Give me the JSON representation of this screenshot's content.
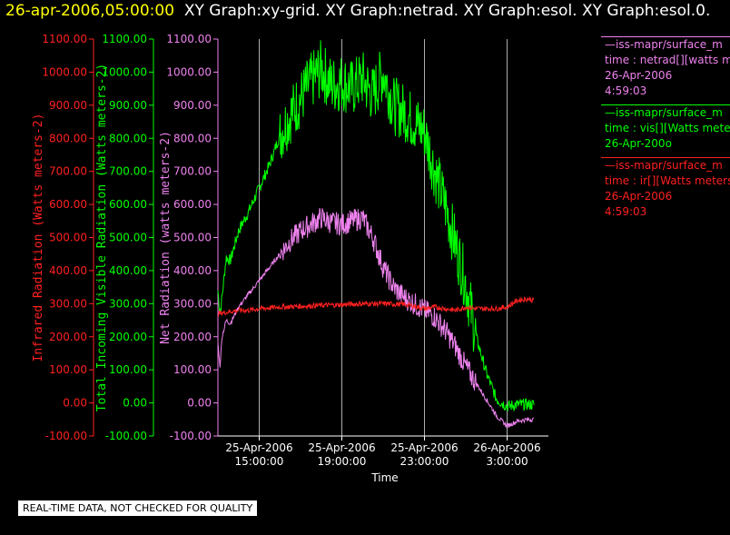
{
  "title": {
    "date": "26-apr-2006,05:00:00",
    "graphs": "XY Graph:xy-grid.  XY Graph:netrad.  XY Graph:esol.  XY Graph:esol.0."
  },
  "colors": {
    "ir": "#ff2020",
    "vis": "#00ff00",
    "net": "#ee82ee",
    "grid": "#ffffff"
  },
  "legend": [
    {
      "lines": [
        "—iss-mapr/surface_m",
        "time : netrad[][watts m",
        "26-Apr-2006",
        "4:59:03"
      ],
      "color": "#ee82ee"
    },
    {
      "lines": [
        "—iss-mapr/surface_m",
        "time : vis[][Watts mete",
        "26-Apr-200o"
      ],
      "color": "#00ff00"
    },
    {
      "lines": [
        "—iss-mapr/surface_m",
        "time : ir[][Watts meters",
        "26-Apr-2006",
        "4:59:03"
      ],
      "color": "#ff2020"
    }
  ],
  "quality_note": "REAL-TIME DATA, NOT CHECKED FOR QUALITY",
  "chart_data": {
    "type": "line",
    "xlabel": "Time",
    "x_ticks": [
      {
        "hours": 2,
        "label": [
          "25-Apr-2006",
          "15:00:00"
        ]
      },
      {
        "hours": 6,
        "label": [
          "25-Apr-2006",
          "19:00:00"
        ]
      },
      {
        "hours": 10,
        "label": [
          "25-Apr-2006",
          "23:00:00"
        ]
      },
      {
        "hours": 14,
        "label": [
          "26-Apr-2006",
          "3:00:00"
        ]
      }
    ],
    "x_range_hours": [
      0,
      16
    ],
    "x_start": "25-Apr-2006 13:00",
    "y_axes": [
      {
        "id": "ir",
        "label": "Infrared Radiation (Watts meters-2)",
        "color": "#ff2020",
        "range": [
          -100,
          1100
        ],
        "ticks": [
          "1100.00",
          "1000.00",
          "900.00",
          "800.00",
          "700.00",
          "600.00",
          "500.00",
          "400.00",
          "300.00",
          "200.00",
          "100.00",
          "0.00",
          "-100.00"
        ]
      },
      {
        "id": "vis",
        "label": "Total Incoming Visible Radiation (Watts meters-2)",
        "color": "#00ff00",
        "range": [
          -100,
          1100
        ],
        "ticks": [
          "1100.00",
          "1000.00",
          "900.00",
          "800.00",
          "700.00",
          "600.00",
          "500.00",
          "400.00",
          "300.00",
          "200.00",
          "100.00",
          "0.00",
          "-100.00"
        ]
      },
      {
        "id": "net",
        "label": "Net Radiation (watts meters-2)",
        "color": "#ee82ee",
        "range": [
          -100,
          1100
        ],
        "ticks": [
          "1100.00",
          "1000.00",
          "900.00",
          "800.00",
          "700.00",
          "600.00",
          "500.00",
          "400.00",
          "300.00",
          "200.00",
          "100.00",
          "0.00",
          "-100.00"
        ]
      }
    ],
    "grid": "vertical",
    "series": [
      {
        "id": "vis",
        "x": [
          0,
          0.1,
          0.2,
          0.4,
          0.6,
          1.0,
          1.5,
          2.0,
          2.5,
          3.0,
          3.5,
          4.0,
          4.5,
          5.0,
          5.5,
          6.0,
          6.5,
          7.0,
          7.5,
          8.0,
          8.5,
          9.0,
          9.5,
          10.0,
          10.5,
          11.0,
          11.5,
          12.0,
          12.5,
          13.0,
          13.5,
          14.0,
          14.5,
          15.0,
          15.3
        ],
        "y": [
          340,
          270,
          320,
          440,
          430,
          520,
          580,
          650,
          720,
          810,
          870,
          920,
          970,
          1010,
          960,
          970,
          950,
          980,
          930,
          1000,
          900,
          880,
          850,
          820,
          700,
          600,
          480,
          360,
          200,
          90,
          10,
          -10,
          -5,
          -5,
          -5
        ]
      },
      {
        "id": "net",
        "x": [
          0,
          0.1,
          0.2,
          0.4,
          0.6,
          1.0,
          1.5,
          2.0,
          2.5,
          3.0,
          3.5,
          4.0,
          4.5,
          5.0,
          5.5,
          6.0,
          6.5,
          7.0,
          7.5,
          8.0,
          8.5,
          9.0,
          9.5,
          10.0,
          10.5,
          11.0,
          11.5,
          12.0,
          12.5,
          13.0,
          13.5,
          14.0,
          14.5,
          15.0,
          15.3
        ],
        "y": [
          180,
          110,
          200,
          250,
          240,
          290,
          330,
          370,
          410,
          450,
          490,
          520,
          540,
          560,
          545,
          540,
          550,
          560,
          500,
          410,
          350,
          320,
          300,
          280,
          260,
          220,
          170,
          110,
          60,
          10,
          -40,
          -70,
          -55,
          -50,
          -50
        ]
      },
      {
        "id": "ir",
        "x": [
          0,
          0.5,
          1,
          1.5,
          2,
          3,
          4,
          5,
          6,
          7,
          8,
          9,
          9.5,
          10,
          10.5,
          11,
          11.5,
          12,
          12.5,
          13,
          13.5,
          14,
          14.5,
          15,
          15.3
        ],
        "y": [
          270,
          275,
          280,
          280,
          285,
          290,
          292,
          295,
          297,
          300,
          300,
          298,
          292,
          285,
          290,
          285,
          280,
          290,
          285,
          285,
          285,
          290,
          310,
          315,
          310
        ]
      }
    ]
  }
}
